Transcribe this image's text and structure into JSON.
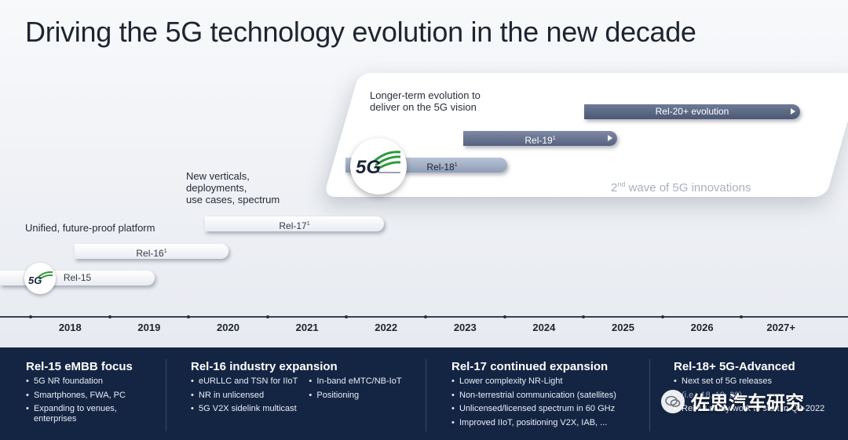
{
  "title": "Driving the 5G technology evolution in the new decade",
  "panel": {
    "caption_line1": "Longer-term evolution to",
    "caption_line2": "deliver on the 5G vision",
    "wave_sup": "nd",
    "wave_prefix": "2",
    "wave_text": " wave of 5G innovations"
  },
  "captions": {
    "unified": "Unified, future-proof platform",
    "verticals_line1": "New verticals,",
    "verticals_line2": "deployments,",
    "verticals_line3": "use cases, spectrum"
  },
  "releases": [
    {
      "label": "Rel-15",
      "sup": ""
    },
    {
      "label": "Rel-16",
      "sup": "1"
    },
    {
      "label": "Rel-17",
      "sup": "1"
    },
    {
      "label": "Rel-18",
      "sup": "1"
    },
    {
      "label": "Rel-19",
      "sup": "1"
    },
    {
      "label": "Rel-20+ evolution",
      "sup": ""
    }
  ],
  "logo_text": "5G",
  "years": [
    "2018",
    "2019",
    "2020",
    "2021",
    "2022",
    "2023",
    "2024",
    "2025",
    "2026",
    "2027+"
  ],
  "footer": {
    "col1": {
      "heading": "Rel-15 eMBB focus",
      "items": [
        "5G NR foundation",
        "Smartphones, FWA, PC",
        "Expanding to venues,",
        "enterprises"
      ]
    },
    "col2": {
      "heading": "Rel-16 industry expansion",
      "items_a": [
        "eURLLC and TSN for IIoT",
        "NR in unlicensed",
        "5G V2X sidelink multicast"
      ],
      "items_b": [
        "In-band eMTC/NB-IoT",
        "Positioning"
      ]
    },
    "col3": {
      "heading": "Rel-17 continued expansion",
      "items": [
        "Lower complexity NR-Light",
        "Non-terrestrial communication (satellites)",
        "Unlicensed/licensed spectrum in 60 GHz",
        "Improved IIoT, positioning V2X, IAB, ..."
      ]
    },
    "col4": {
      "heading": "Rel-18+ 5G-Advanced",
      "items": [
        "Next set of 5G releases",
        "(i.e., 18, 19, 20)",
        "Rel-18 study/work to start in Q2-2022"
      ]
    }
  },
  "watermark": "佐思汽车研究",
  "colors": {
    "footer_bg": "#142544",
    "logo_green": "#2e9a3a"
  }
}
